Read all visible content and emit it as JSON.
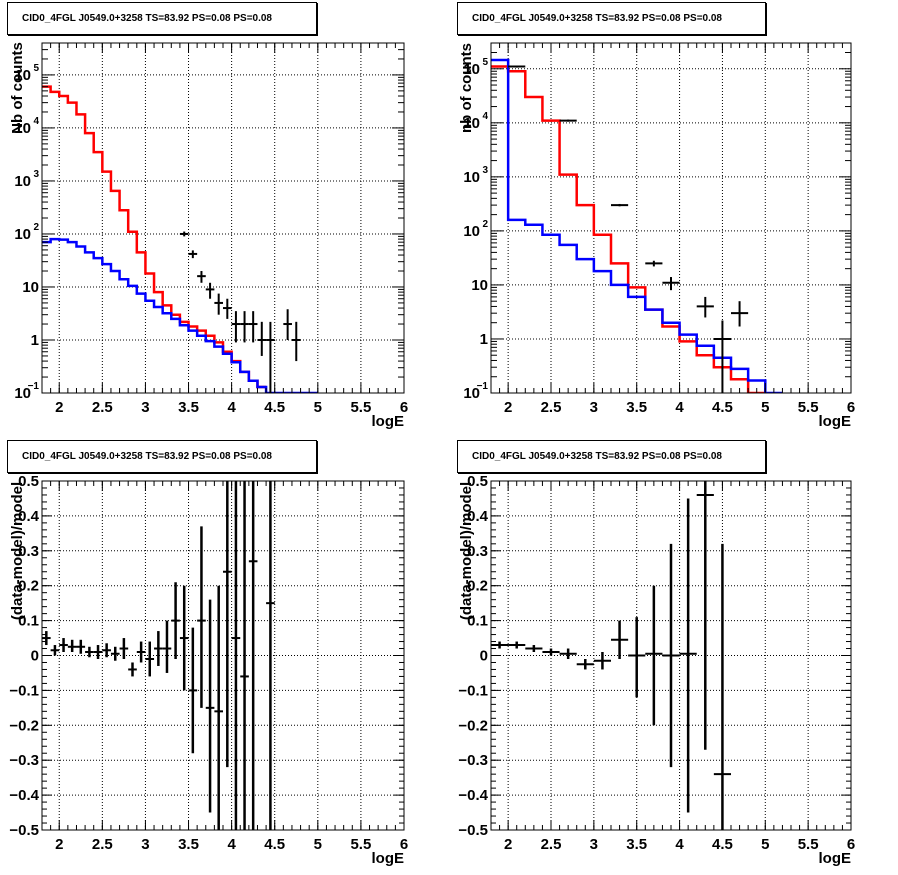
{
  "chart_data": [
    {
      "type": "step-histogram",
      "title": "CID0_4FGL J0549.0+3258 TS=83.92 PS=0.08 PS=0.08",
      "xlabel": "logE",
      "ylabel": "Nb of counts",
      "log_y": true,
      "grid": true,
      "xlim": [
        1.8,
        6
      ],
      "ylim": [
        0.1,
        400000
      ],
      "xticks": [
        "2",
        "2.5",
        "3",
        "3.5",
        "4",
        "4.5",
        "5",
        "5.5",
        "6"
      ],
      "yticks": [
        {
          "base": "10",
          "exp": "−1",
          "value": 0.1
        },
        {
          "base": "1",
          "exp": "",
          "value": 1
        },
        {
          "base": "10",
          "exp": "",
          "value": 10
        },
        {
          "base": "10",
          "exp": "2",
          "value": 100
        },
        {
          "base": "10",
          "exp": "3",
          "value": 1000
        },
        {
          "base": "10",
          "exp": "4",
          "value": 10000
        },
        {
          "base": "10",
          "exp": "5",
          "value": 100000
        }
      ],
      "bin_edges_start": 1.8,
      "bin_width": 0.1,
      "series": [
        {
          "color": "#ff0000",
          "kind": "step",
          "values": [
            60000,
            48000,
            40000,
            30000,
            18000,
            8000,
            3500,
            1500,
            650,
            280,
            110,
            45,
            18,
            8,
            4.5,
            3,
            2.2,
            1.8,
            1.5,
            1.2,
            0.9,
            0.6,
            0.4,
            0.25,
            0.17,
            0.13
          ]
        },
        {
          "color": "#0000ff",
          "kind": "step",
          "values": [
            70,
            80,
            78,
            70,
            58,
            45,
            35,
            27,
            20,
            14,
            10.5,
            7.5,
            5.5,
            4.2,
            3.2,
            2.5,
            1.9,
            1.5,
            1.2,
            0.95,
            0.75,
            0.55,
            0.38,
            0.25,
            0.17,
            0.13,
            0.1,
            0.1,
            0.1,
            0.1,
            0.1,
            0.1
          ]
        },
        {
          "color": "#000000",
          "kind": "points",
          "points": [
            {
              "x": 3.45,
              "y": 100,
              "lo": 90,
              "hi": 111
            },
            {
              "x": 3.55,
              "y": 42,
              "lo": 35,
              "hi": 49
            },
            {
              "x": 3.65,
              "y": 16,
              "lo": 12,
              "hi": 20
            },
            {
              "x": 3.75,
              "y": 9,
              "lo": 6,
              "hi": 12
            },
            {
              "x": 3.85,
              "y": 5,
              "lo": 3,
              "hi": 7.5
            },
            {
              "x": 3.95,
              "y": 4,
              "lo": 2.5,
              "hi": 6
            },
            {
              "x": 4.05,
              "y": 2,
              "lo": 0.9,
              "hi": 3.5
            },
            {
              "x": 4.15,
              "y": 2,
              "lo": 0.9,
              "hi": 3.5
            },
            {
              "x": 4.25,
              "y": 2,
              "lo": 0.9,
              "hi": 3.5
            },
            {
              "x": 4.35,
              "y": 1,
              "lo": 0.5,
              "hi": 2.2
            },
            {
              "x": 4.45,
              "y": 1,
              "lo": 0.1,
              "hi": 2.2
            },
            {
              "x": 4.65,
              "y": 2,
              "lo": 1,
              "hi": 3.8
            },
            {
              "x": 4.75,
              "y": 1,
              "lo": 0.4,
              "hi": 2.2
            }
          ]
        }
      ]
    },
    {
      "type": "step-histogram",
      "title": "CID0_4FGL J0549.0+3258 TS=83.92 PS=0.08 PS=0.08",
      "xlabel": "logE",
      "ylabel": "nb of counts",
      "log_y": true,
      "grid": true,
      "xlim": [
        1.8,
        6
      ],
      "ylim": [
        0.1,
        300000
      ],
      "xticks": [
        "2",
        "2.5",
        "3",
        "3.5",
        "4",
        "4.5",
        "5",
        "5.5",
        "6"
      ],
      "yticks": [
        {
          "base": "10",
          "exp": "−1",
          "value": 0.1
        },
        {
          "base": "1",
          "exp": "",
          "value": 1
        },
        {
          "base": "10",
          "exp": "",
          "value": 10
        },
        {
          "base": "10",
          "exp": "2",
          "value": 100
        },
        {
          "base": "10",
          "exp": "3",
          "value": 1000
        },
        {
          "base": "10",
          "exp": "4",
          "value": 10000
        },
        {
          "base": "10",
          "exp": "5",
          "value": 100000
        }
      ],
      "bin_edges_start": 1.8,
      "bin_width": 0.2,
      "series": [
        {
          "color": "#ff0000",
          "kind": "step",
          "values": [
            110000,
            90000,
            30000,
            11000,
            1100,
            300,
            85,
            25,
            9,
            3.5,
            1.7,
            0.9,
            0.5,
            0.3,
            0.18,
            0.1
          ]
        },
        {
          "color": "#0000ff",
          "kind": "step",
          "values": [
            145000,
            160,
            130,
            85,
            55,
            30,
            18,
            10,
            6,
            3.5,
            2,
            1.2,
            0.75,
            0.45,
            0.28,
            0.17,
            0.1
          ]
        },
        {
          "color": "#000000",
          "kind": "points",
          "points": [
            {
              "x": 2.1,
              "y": 110000,
              "lo": 105000,
              "hi": 115000
            },
            {
              "x": 2.7,
              "y": 11000,
              "lo": 10500,
              "hi": 11500
            },
            {
              "x": 3.3,
              "y": 300,
              "lo": 285,
              "hi": 315
            },
            {
              "x": 3.7,
              "y": 25,
              "lo": 22,
              "hi": 28
            },
            {
              "x": 3.9,
              "y": 11,
              "lo": 8,
              "hi": 14
            },
            {
              "x": 4.3,
              "y": 4,
              "lo": 2.5,
              "hi": 6
            },
            {
              "x": 4.5,
              "y": 1,
              "lo": 0.1,
              "hi": 2.2
            },
            {
              "x": 4.7,
              "y": 3,
              "lo": 1.7,
              "hi": 5
            }
          ]
        }
      ]
    },
    {
      "type": "scatter",
      "title": "CID0_4FGL J0549.0+3258 TS=83.92 PS=0.08 PS=0.08",
      "xlabel": "logE",
      "ylabel": "(data-model)/model",
      "grid": true,
      "xlim": [
        1.8,
        6
      ],
      "ylim": [
        -0.5,
        0.5
      ],
      "xticks": [
        "2",
        "2.5",
        "3",
        "3.5",
        "4",
        "4.5",
        "5",
        "5.5",
        "6"
      ],
      "yticks": [
        "−0.5",
        "−0.4",
        "−0.3",
        "−0.2",
        "−0.1",
        "0",
        "0.1",
        "0.2",
        "0.3",
        "0.4",
        "0.5"
      ],
      "bin_width": 0.1,
      "points": [
        {
          "x": 1.85,
          "y": 0.05,
          "lo": 0.03,
          "hi": 0.07
        },
        {
          "x": 1.95,
          "y": 0.015,
          "lo": 0.0,
          "hi": 0.03
        },
        {
          "x": 2.05,
          "y": 0.03,
          "lo": 0.01,
          "hi": 0.05
        },
        {
          "x": 2.15,
          "y": 0.025,
          "lo": 0.01,
          "hi": 0.045
        },
        {
          "x": 2.25,
          "y": 0.025,
          "lo": 0.005,
          "hi": 0.045
        },
        {
          "x": 2.35,
          "y": 0.01,
          "lo": -0.005,
          "hi": 0.025
        },
        {
          "x": 2.45,
          "y": 0.01,
          "lo": -0.01,
          "hi": 0.03
        },
        {
          "x": 2.55,
          "y": 0.015,
          "lo": -0.005,
          "hi": 0.035
        },
        {
          "x": 2.65,
          "y": 0.005,
          "lo": -0.015,
          "hi": 0.025
        },
        {
          "x": 2.75,
          "y": 0.02,
          "lo": -0.01,
          "hi": 0.05
        },
        {
          "x": 2.85,
          "y": -0.04,
          "lo": -0.06,
          "hi": -0.02
        },
        {
          "x": 2.95,
          "y": 0.01,
          "lo": -0.02,
          "hi": 0.04
        },
        {
          "x": 3.05,
          "y": -0.01,
          "lo": -0.06,
          "hi": 0.04
        },
        {
          "x": 3.15,
          "y": 0.02,
          "lo": -0.03,
          "hi": 0.07
        },
        {
          "x": 3.25,
          "y": 0.02,
          "lo": -0.05,
          "hi": 0.1
        },
        {
          "x": 3.35,
          "y": 0.1,
          "lo": -0.01,
          "hi": 0.21
        },
        {
          "x": 3.45,
          "y": 0.05,
          "lo": -0.1,
          "hi": 0.2
        },
        {
          "x": 3.55,
          "y": -0.1,
          "lo": -0.28,
          "hi": 0.08
        },
        {
          "x": 3.65,
          "y": 0.1,
          "lo": -0.15,
          "hi": 0.37
        },
        {
          "x": 3.75,
          "y": -0.15,
          "lo": -0.45,
          "hi": 0.16
        },
        {
          "x": 3.85,
          "y": -0.16,
          "lo": -0.5,
          "hi": 0.2
        },
        {
          "x": 3.95,
          "y": 0.24,
          "lo": -0.32,
          "hi": 0.5
        },
        {
          "x": 4.05,
          "y": 0.05,
          "lo": -0.5,
          "hi": 0.5
        },
        {
          "x": 4.15,
          "y": -0.06,
          "lo": -0.5,
          "hi": 0.5
        },
        {
          "x": 4.25,
          "y": 0.27,
          "lo": -0.5,
          "hi": 0.5
        },
        {
          "x": 4.45,
          "y": 0.15,
          "lo": -0.5,
          "hi": 0.5
        }
      ]
    },
    {
      "type": "scatter",
      "title": "CID0_4FGL J0549.0+3258 TS=83.92 PS=0.08 PS=0.08",
      "xlabel": "logE",
      "ylabel": "(data-model)/model",
      "grid": true,
      "xlim": [
        1.8,
        6
      ],
      "ylim": [
        -0.5,
        0.5
      ],
      "xticks": [
        "2",
        "2.5",
        "3",
        "3.5",
        "4",
        "4.5",
        "5",
        "5.5",
        "6"
      ],
      "yticks": [
        "−0.5",
        "−0.4",
        "−0.3",
        "−0.2",
        "−0.1",
        "0",
        "0.1",
        "0.2",
        "0.3",
        "0.4",
        "0.5"
      ],
      "bin_width": 0.2,
      "points": [
        {
          "x": 1.9,
          "y": 0.03,
          "lo": 0.02,
          "hi": 0.04
        },
        {
          "x": 2.1,
          "y": 0.03,
          "lo": 0.02,
          "hi": 0.04
        },
        {
          "x": 2.3,
          "y": 0.02,
          "lo": 0.01,
          "hi": 0.03
        },
        {
          "x": 2.5,
          "y": 0.01,
          "lo": 0.0,
          "hi": 0.02
        },
        {
          "x": 2.7,
          "y": 0.005,
          "lo": -0.01,
          "hi": 0.02
        },
        {
          "x": 2.9,
          "y": -0.025,
          "lo": -0.04,
          "hi": -0.01
        },
        {
          "x": 3.1,
          "y": -0.015,
          "lo": -0.04,
          "hi": 0.01
        },
        {
          "x": 3.3,
          "y": 0.045,
          "lo": -0.01,
          "hi": 0.1
        },
        {
          "x": 3.5,
          "y": 0.0,
          "lo": -0.12,
          "hi": 0.11
        },
        {
          "x": 3.7,
          "y": 0.005,
          "lo": -0.2,
          "hi": 0.2
        },
        {
          "x": 3.9,
          "y": 0.0,
          "lo": -0.32,
          "hi": 0.32
        },
        {
          "x": 4.1,
          "y": 0.005,
          "lo": -0.45,
          "hi": 0.45
        },
        {
          "x": 4.3,
          "y": 0.46,
          "lo": -0.27,
          "hi": 0.5
        },
        {
          "x": 4.5,
          "y": -0.34,
          "lo": -0.5,
          "hi": 0.32
        }
      ]
    }
  ]
}
